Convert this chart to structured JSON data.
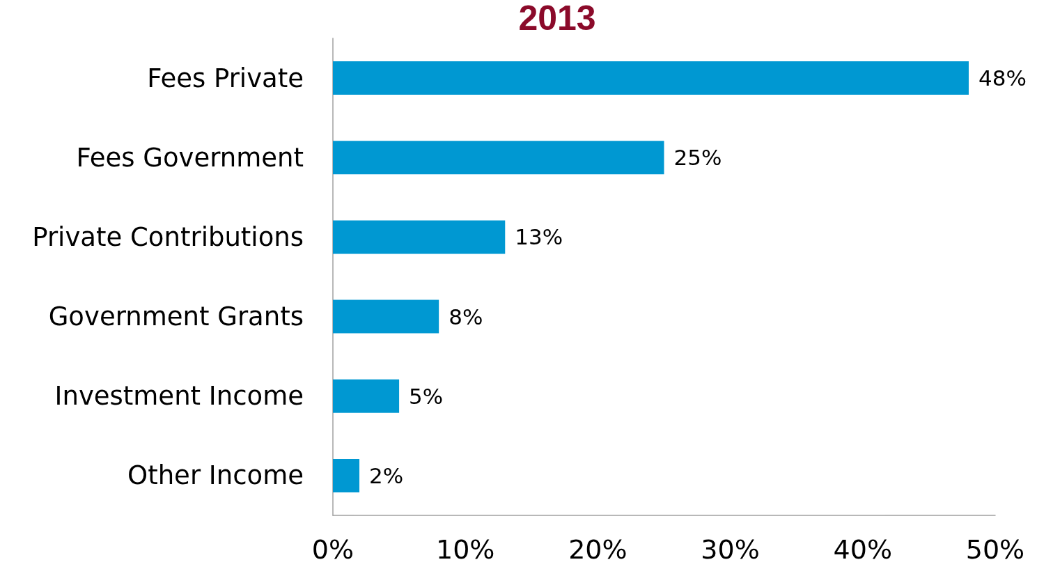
{
  "chart_data": {
    "type": "bar",
    "orientation": "horizontal",
    "title": "2013",
    "categories": [
      "Fees Private",
      "Fees Government",
      "Private Contributions",
      "Government Grants",
      "Investment Income",
      "Other Income"
    ],
    "values": [
      48,
      25,
      13,
      8,
      5,
      2
    ],
    "value_labels": [
      "48%",
      "25%",
      "13%",
      "8%",
      "5%",
      "2%"
    ],
    "color": "#0098d2",
    "xlim": [
      0,
      50
    ],
    "xticks": [
      {
        "value": 0,
        "label": "0%"
      },
      {
        "value": 10,
        "label": "10%"
      },
      {
        "value": 20,
        "label": "20%"
      },
      {
        "value": 30,
        "label": "30%"
      },
      {
        "value": 40,
        "label": "40%"
      },
      {
        "value": 50,
        "label": "50%"
      }
    ],
    "grid": false
  }
}
